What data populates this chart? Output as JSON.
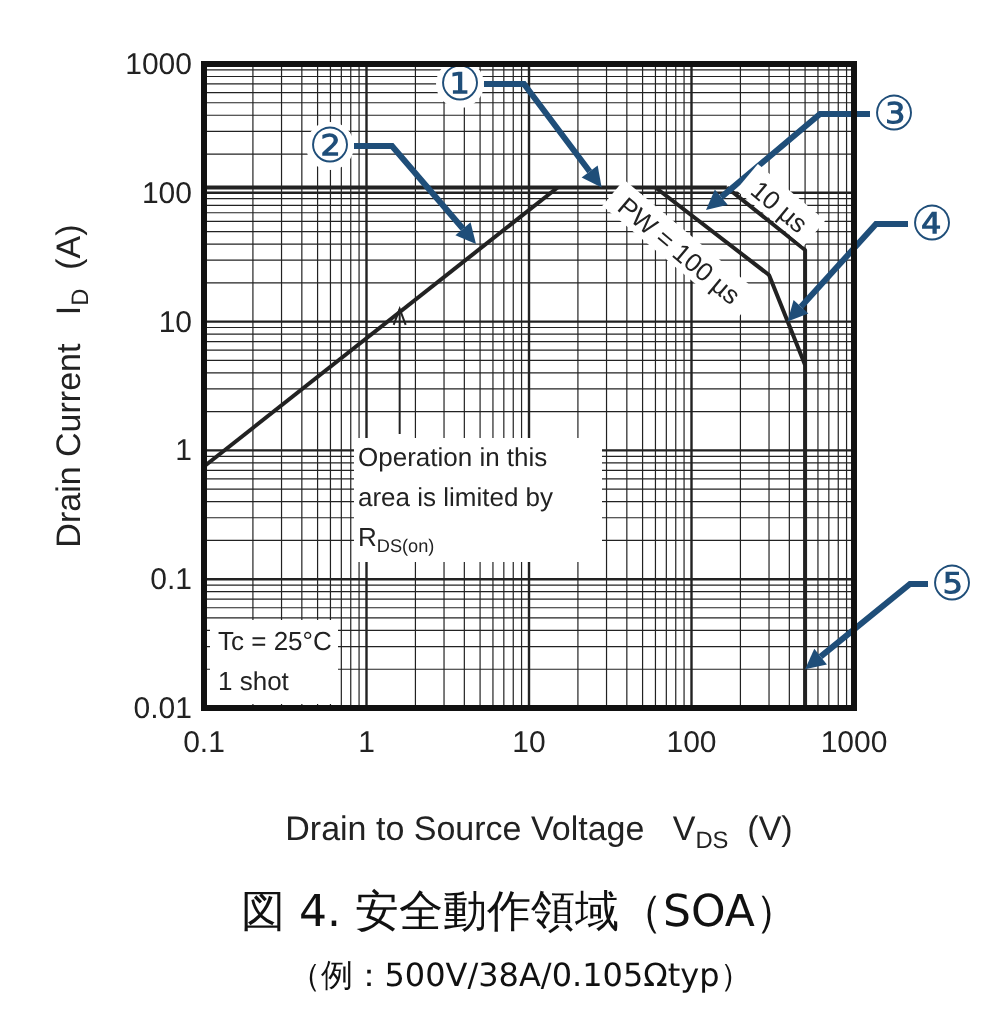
{
  "chart_data": {
    "type": "line",
    "title": "図 4. 安全動作領域（SOA）",
    "subtitle": "（例：500V/38A/0.105Ωtyp）",
    "xlabel": "Drain to Source Voltage   V$_{DS}$  (V)",
    "ylabel": "Drain Current   I$_{D}$  (A)",
    "log": "xy",
    "grid": true,
    "marker": "none",
    "line_style": "solid",
    "xlim": [
      0.1,
      1000
    ],
    "ylim": [
      0.01,
      1000
    ],
    "xticks": [
      0.1,
      1,
      10,
      100,
      1000
    ],
    "yticks": [
      0.01,
      0.1,
      1,
      10,
      100,
      1000
    ],
    "series": [
      {
        "color": "#222222",
        "x": [
          0.1,
          15
        ],
        "values": [
          0.75,
          110
        ]
      },
      {
        "color": "#222222",
        "x": [
          0.1,
          165
        ],
        "values": [
          110,
          110
        ]
      },
      {
        "color": "#222222",
        "x": [
          60,
          300,
          500
        ],
        "values": [
          110,
          23,
          4.6
        ]
      },
      {
        "color": "#222222",
        "x": [
          165,
          500,
          500
        ],
        "values": [
          110,
          36,
          0.01
        ]
      }
    ],
    "annotations": [
      {
        "text": "①",
        "x": 28,
        "y": 110
      },
      "②",
      "③",
      {
        "text": "④",
        "x": 390,
        "y": 10
      },
      {
        "text": "⑤",
        "x": 500,
        "y": 0.02
      },
      {
        "text": "Operation in this\narea is limited by\nR$_{DS(on)}$",
        "x": 1.6,
        "y": 13
      },
      "PW = 100 µs",
      "10 µs",
      "Tc = 25°C\n1 shot"
    ]
  }
}
